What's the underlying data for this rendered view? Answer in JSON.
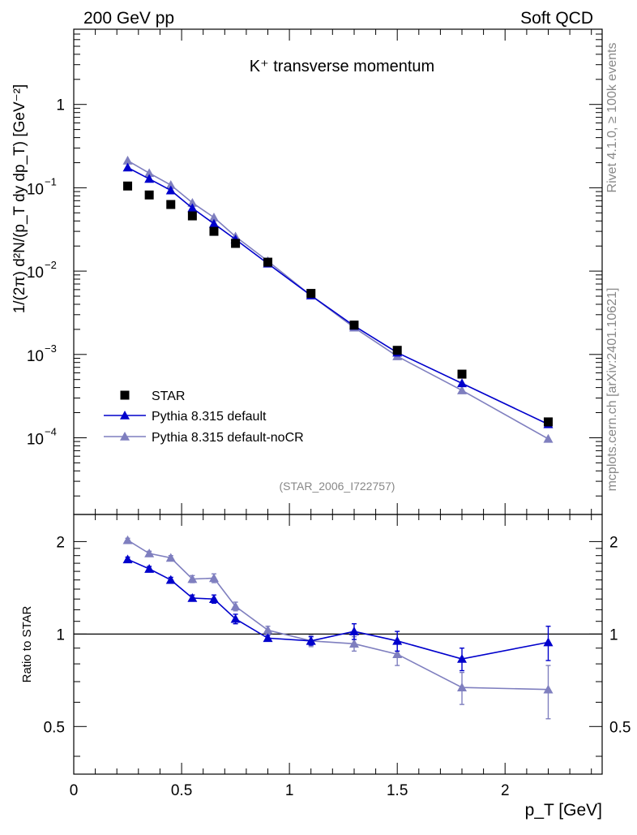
{
  "header": {
    "left": "200 GeV pp",
    "right": "Soft QCD",
    "side_right_top": "Rivet 4.1.0, ≥ 100k events",
    "side_right_bottom": "mcplots.cern.ch [arXiv:2401.10621]"
  },
  "chart_data": {
    "type": "line",
    "title": "K⁺ transverse momentum",
    "analysis_id": "(STAR_2006_I722757)",
    "xlabel": "p_T [GeV]",
    "ylabel": "1/(2π)  d²N/(p_T dy dp_T) [GeV⁻²]",
    "ratio_ylabel": "Ratio to STAR",
    "xlim": [
      0,
      2.45
    ],
    "ylim": [
      1.2e-05,
      8
    ],
    "yscale": "log",
    "ratio_ylim": [
      0.35,
      2.45
    ],
    "ratio_yscale": "log",
    "x_ticks": [
      0,
      0.5,
      1,
      1.5,
      2
    ],
    "x_tick_labels": [
      "0",
      "0.5",
      "1",
      "1.5",
      "2"
    ],
    "y_ticks": [
      1,
      0.1,
      0.01,
      0.001,
      0.0001
    ],
    "y_tick_labels": [
      {
        "base": "1",
        "exp": ""
      },
      {
        "base": "10",
        "exp": "−1"
      },
      {
        "base": "10",
        "exp": "−2"
      },
      {
        "base": "10",
        "exp": "−3"
      },
      {
        "base": "10",
        "exp": "−4"
      }
    ],
    "ratio_y_ticks": [
      2,
      1,
      0.5
    ],
    "ratio_y_tick_labels": [
      "2",
      "1",
      "0.5"
    ],
    "legend_position": "bottom-left",
    "x": [
      0.25,
      0.35,
      0.45,
      0.55,
      0.65,
      0.75,
      0.9,
      1.1,
      1.3,
      1.5,
      1.8,
      2.2
    ],
    "series": [
      {
        "name": "STAR",
        "color": "#000000",
        "marker": "square",
        "values": [
          0.105,
          0.082,
          0.063,
          0.046,
          0.03,
          0.0215,
          0.0128,
          0.0054,
          0.00225,
          0.00112,
          0.00058,
          0.000155
        ],
        "ratio": []
      },
      {
        "name": "Pythia 8.315 default",
        "color": "#0000cc",
        "marker": "triangle",
        "values": [
          0.175,
          0.128,
          0.093,
          0.057,
          0.037,
          0.024,
          0.0123,
          0.0051,
          0.0022,
          0.00105,
          0.00045,
          0.000145
        ],
        "ratio": [
          1.75,
          1.63,
          1.5,
          1.31,
          1.3,
          1.12,
          0.97,
          0.95,
          1.02,
          0.95,
          0.83,
          0.94
        ],
        "ratio_err": [
          0.03,
          0.03,
          0.03,
          0.03,
          0.04,
          0.04,
          0.02,
          0.03,
          0.06,
          0.07,
          0.07,
          0.12
        ]
      },
      {
        "name": "Pythia 8.315 default-noCR",
        "color": "#7f7fbf",
        "marker": "triangle",
        "values": [
          0.212,
          0.15,
          0.108,
          0.066,
          0.044,
          0.026,
          0.0132,
          0.0051,
          0.0021,
          0.00095,
          0.00037,
          9.7e-05
        ],
        "ratio": [
          2.02,
          1.83,
          1.77,
          1.51,
          1.52,
          1.23,
          1.03,
          0.95,
          0.93,
          0.86,
          0.67,
          0.66
        ],
        "ratio_err": [
          0.03,
          0.03,
          0.03,
          0.04,
          0.05,
          0.04,
          0.03,
          0.04,
          0.05,
          0.07,
          0.08,
          0.13
        ]
      }
    ]
  }
}
